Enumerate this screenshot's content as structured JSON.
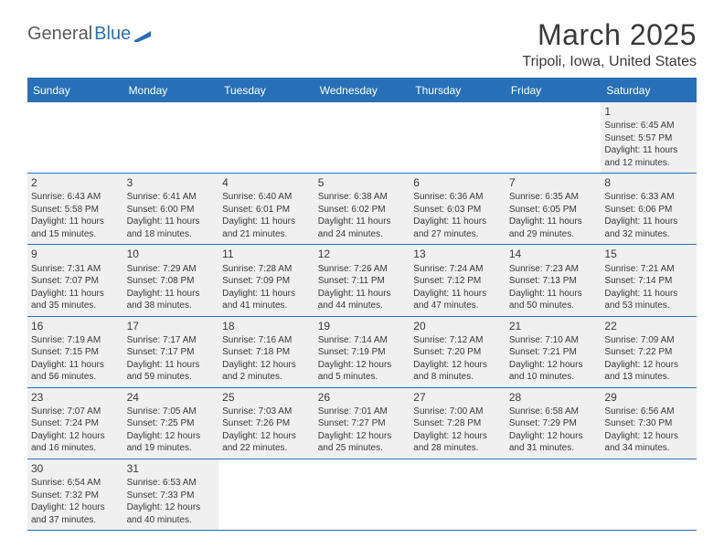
{
  "logo": {
    "text1": "General",
    "text2": "Blue"
  },
  "title": "March 2025",
  "location": "Tripoli, Iowa, United States",
  "weekdays": [
    "Sunday",
    "Monday",
    "Tuesday",
    "Wednesday",
    "Thursday",
    "Friday",
    "Saturday"
  ],
  "colors": {
    "brand": "#2770b8",
    "text": "#3a3a3a",
    "cell_bg": "#f0f0f0",
    "page_bg": "#ffffff"
  },
  "typography": {
    "title_fontsize": 32,
    "location_fontsize": 16,
    "weekday_fontsize": 12,
    "daynum_fontsize": 12,
    "body_fontsize": 10
  },
  "layout": {
    "columns": 7,
    "rows": 6
  },
  "weeks": [
    [
      {
        "num": "",
        "lines": []
      },
      {
        "num": "",
        "lines": []
      },
      {
        "num": "",
        "lines": []
      },
      {
        "num": "",
        "lines": []
      },
      {
        "num": "",
        "lines": []
      },
      {
        "num": "",
        "lines": []
      },
      {
        "num": "1",
        "lines": [
          "Sunrise: 6:45 AM",
          "Sunset: 5:57 PM",
          "Daylight: 11 hours",
          "and 12 minutes."
        ]
      }
    ],
    [
      {
        "num": "2",
        "lines": [
          "Sunrise: 6:43 AM",
          "Sunset: 5:58 PM",
          "Daylight: 11 hours",
          "and 15 minutes."
        ]
      },
      {
        "num": "3",
        "lines": [
          "Sunrise: 6:41 AM",
          "Sunset: 6:00 PM",
          "Daylight: 11 hours",
          "and 18 minutes."
        ]
      },
      {
        "num": "4",
        "lines": [
          "Sunrise: 6:40 AM",
          "Sunset: 6:01 PM",
          "Daylight: 11 hours",
          "and 21 minutes."
        ]
      },
      {
        "num": "5",
        "lines": [
          "Sunrise: 6:38 AM",
          "Sunset: 6:02 PM",
          "Daylight: 11 hours",
          "and 24 minutes."
        ]
      },
      {
        "num": "6",
        "lines": [
          "Sunrise: 6:36 AM",
          "Sunset: 6:03 PM",
          "Daylight: 11 hours",
          "and 27 minutes."
        ]
      },
      {
        "num": "7",
        "lines": [
          "Sunrise: 6:35 AM",
          "Sunset: 6:05 PM",
          "Daylight: 11 hours",
          "and 29 minutes."
        ]
      },
      {
        "num": "8",
        "lines": [
          "Sunrise: 6:33 AM",
          "Sunset: 6:06 PM",
          "Daylight: 11 hours",
          "and 32 minutes."
        ]
      }
    ],
    [
      {
        "num": "9",
        "lines": [
          "Sunrise: 7:31 AM",
          "Sunset: 7:07 PM",
          "Daylight: 11 hours",
          "and 35 minutes."
        ]
      },
      {
        "num": "10",
        "lines": [
          "Sunrise: 7:29 AM",
          "Sunset: 7:08 PM",
          "Daylight: 11 hours",
          "and 38 minutes."
        ]
      },
      {
        "num": "11",
        "lines": [
          "Sunrise: 7:28 AM",
          "Sunset: 7:09 PM",
          "Daylight: 11 hours",
          "and 41 minutes."
        ]
      },
      {
        "num": "12",
        "lines": [
          "Sunrise: 7:26 AM",
          "Sunset: 7:11 PM",
          "Daylight: 11 hours",
          "and 44 minutes."
        ]
      },
      {
        "num": "13",
        "lines": [
          "Sunrise: 7:24 AM",
          "Sunset: 7:12 PM",
          "Daylight: 11 hours",
          "and 47 minutes."
        ]
      },
      {
        "num": "14",
        "lines": [
          "Sunrise: 7:23 AM",
          "Sunset: 7:13 PM",
          "Daylight: 11 hours",
          "and 50 minutes."
        ]
      },
      {
        "num": "15",
        "lines": [
          "Sunrise: 7:21 AM",
          "Sunset: 7:14 PM",
          "Daylight: 11 hours",
          "and 53 minutes."
        ]
      }
    ],
    [
      {
        "num": "16",
        "lines": [
          "Sunrise: 7:19 AM",
          "Sunset: 7:15 PM",
          "Daylight: 11 hours",
          "and 56 minutes."
        ]
      },
      {
        "num": "17",
        "lines": [
          "Sunrise: 7:17 AM",
          "Sunset: 7:17 PM",
          "Daylight: 11 hours",
          "and 59 minutes."
        ]
      },
      {
        "num": "18",
        "lines": [
          "Sunrise: 7:16 AM",
          "Sunset: 7:18 PM",
          "Daylight: 12 hours",
          "and 2 minutes."
        ]
      },
      {
        "num": "19",
        "lines": [
          "Sunrise: 7:14 AM",
          "Sunset: 7:19 PM",
          "Daylight: 12 hours",
          "and 5 minutes."
        ]
      },
      {
        "num": "20",
        "lines": [
          "Sunrise: 7:12 AM",
          "Sunset: 7:20 PM",
          "Daylight: 12 hours",
          "and 8 minutes."
        ]
      },
      {
        "num": "21",
        "lines": [
          "Sunrise: 7:10 AM",
          "Sunset: 7:21 PM",
          "Daylight: 12 hours",
          "and 10 minutes."
        ]
      },
      {
        "num": "22",
        "lines": [
          "Sunrise: 7:09 AM",
          "Sunset: 7:22 PM",
          "Daylight: 12 hours",
          "and 13 minutes."
        ]
      }
    ],
    [
      {
        "num": "23",
        "lines": [
          "Sunrise: 7:07 AM",
          "Sunset: 7:24 PM",
          "Daylight: 12 hours",
          "and 16 minutes."
        ]
      },
      {
        "num": "24",
        "lines": [
          "Sunrise: 7:05 AM",
          "Sunset: 7:25 PM",
          "Daylight: 12 hours",
          "and 19 minutes."
        ]
      },
      {
        "num": "25",
        "lines": [
          "Sunrise: 7:03 AM",
          "Sunset: 7:26 PM",
          "Daylight: 12 hours",
          "and 22 minutes."
        ]
      },
      {
        "num": "26",
        "lines": [
          "Sunrise: 7:01 AM",
          "Sunset: 7:27 PM",
          "Daylight: 12 hours",
          "and 25 minutes."
        ]
      },
      {
        "num": "27",
        "lines": [
          "Sunrise: 7:00 AM",
          "Sunset: 7:28 PM",
          "Daylight: 12 hours",
          "and 28 minutes."
        ]
      },
      {
        "num": "28",
        "lines": [
          "Sunrise: 6:58 AM",
          "Sunset: 7:29 PM",
          "Daylight: 12 hours",
          "and 31 minutes."
        ]
      },
      {
        "num": "29",
        "lines": [
          "Sunrise: 6:56 AM",
          "Sunset: 7:30 PM",
          "Daylight: 12 hours",
          "and 34 minutes."
        ]
      }
    ],
    [
      {
        "num": "30",
        "lines": [
          "Sunrise: 6:54 AM",
          "Sunset: 7:32 PM",
          "Daylight: 12 hours",
          "and 37 minutes."
        ]
      },
      {
        "num": "31",
        "lines": [
          "Sunrise: 6:53 AM",
          "Sunset: 7:33 PM",
          "Daylight: 12 hours",
          "and 40 minutes."
        ]
      },
      {
        "num": "",
        "lines": []
      },
      {
        "num": "",
        "lines": []
      },
      {
        "num": "",
        "lines": []
      },
      {
        "num": "",
        "lines": []
      },
      {
        "num": "",
        "lines": []
      }
    ]
  ]
}
